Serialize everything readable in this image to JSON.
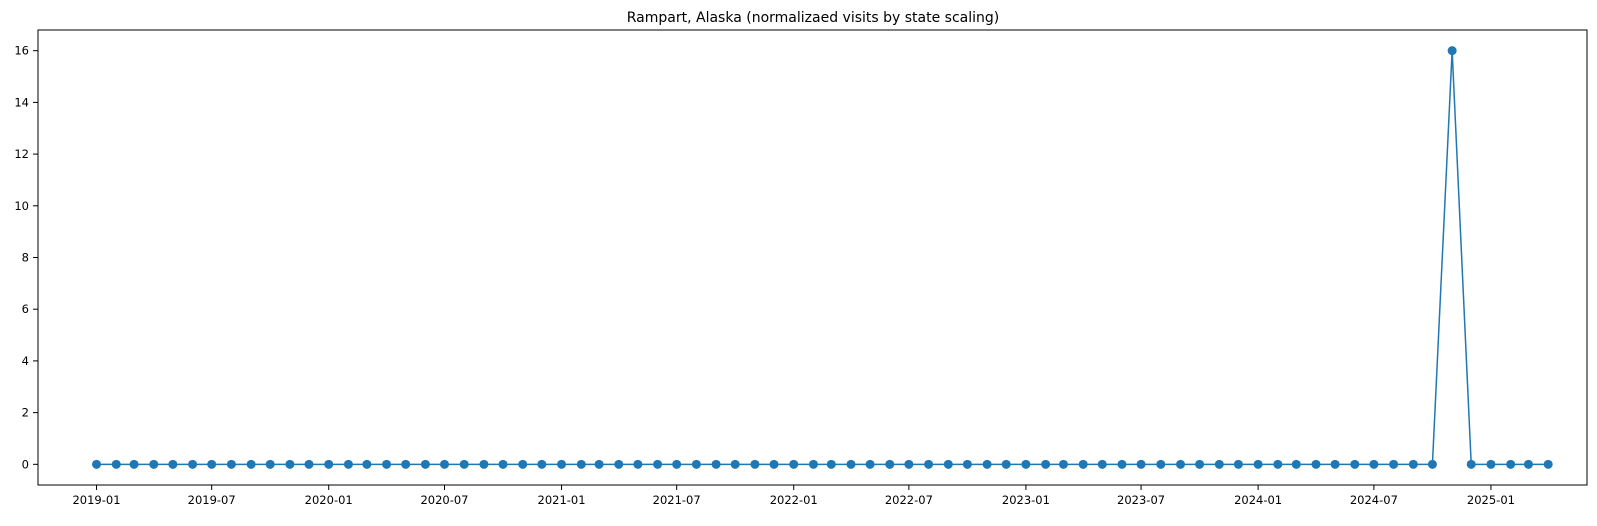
{
  "chart_data": {
    "type": "line",
    "title": "Rampart, Alaska (normalizaed visits by state scaling)",
    "xlabel": "",
    "ylabel": "",
    "x_axis": "date",
    "xlim": [
      "2018-10-01",
      "2025-06-01"
    ],
    "ylim": [
      -0.8,
      16.8
    ],
    "grid": false,
    "legend": "none",
    "x_ticks": [
      "2019-01",
      "2019-07",
      "2020-01",
      "2020-07",
      "2021-01",
      "2021-07",
      "2022-01",
      "2022-07",
      "2023-01",
      "2023-07",
      "2024-01",
      "2024-07",
      "2025-01"
    ],
    "y_ticks": [
      0,
      2,
      4,
      6,
      8,
      10,
      12,
      14,
      16
    ],
    "series": [
      {
        "color": "#1f77b4",
        "marker": "circle",
        "x": [
          "2019-01",
          "2019-02",
          "2019-03",
          "2019-04",
          "2019-05",
          "2019-06",
          "2019-07",
          "2019-08",
          "2019-09",
          "2019-10",
          "2019-11",
          "2019-12",
          "2020-01",
          "2020-02",
          "2020-03",
          "2020-04",
          "2020-05",
          "2020-06",
          "2020-07",
          "2020-08",
          "2020-09",
          "2020-10",
          "2020-11",
          "2020-12",
          "2021-01",
          "2021-02",
          "2021-03",
          "2021-04",
          "2021-05",
          "2021-06",
          "2021-07",
          "2021-08",
          "2021-09",
          "2021-10",
          "2021-11",
          "2021-12",
          "2022-01",
          "2022-02",
          "2022-03",
          "2022-04",
          "2022-05",
          "2022-06",
          "2022-07",
          "2022-08",
          "2022-09",
          "2022-10",
          "2022-11",
          "2022-12",
          "2023-01",
          "2023-02",
          "2023-03",
          "2023-04",
          "2023-05",
          "2023-06",
          "2023-07",
          "2023-08",
          "2023-09",
          "2023-10",
          "2023-11",
          "2023-12",
          "2024-01",
          "2024-02",
          "2024-03",
          "2024-04",
          "2024-05",
          "2024-06",
          "2024-07",
          "2024-08",
          "2024-09",
          "2024-10",
          "2024-11",
          "2024-12",
          "2025-01",
          "2025-02",
          "2025-03",
          "2025-04"
        ],
        "y": [
          0,
          0,
          0,
          0,
          0,
          0,
          0,
          0,
          0,
          0,
          0,
          0,
          0,
          0,
          0,
          0,
          0,
          0,
          0,
          0,
          0,
          0,
          0,
          0,
          0,
          0,
          0,
          0,
          0,
          0,
          0,
          0,
          0,
          0,
          0,
          0,
          0,
          0,
          0,
          0,
          0,
          0,
          0,
          0,
          0,
          0,
          0,
          0,
          0,
          0,
          0,
          0,
          0,
          0,
          0,
          0,
          0,
          0,
          0,
          0,
          0,
          0,
          0,
          0,
          0,
          0,
          0,
          0,
          0,
          0,
          16,
          0,
          0,
          0,
          0,
          0
        ]
      }
    ]
  }
}
